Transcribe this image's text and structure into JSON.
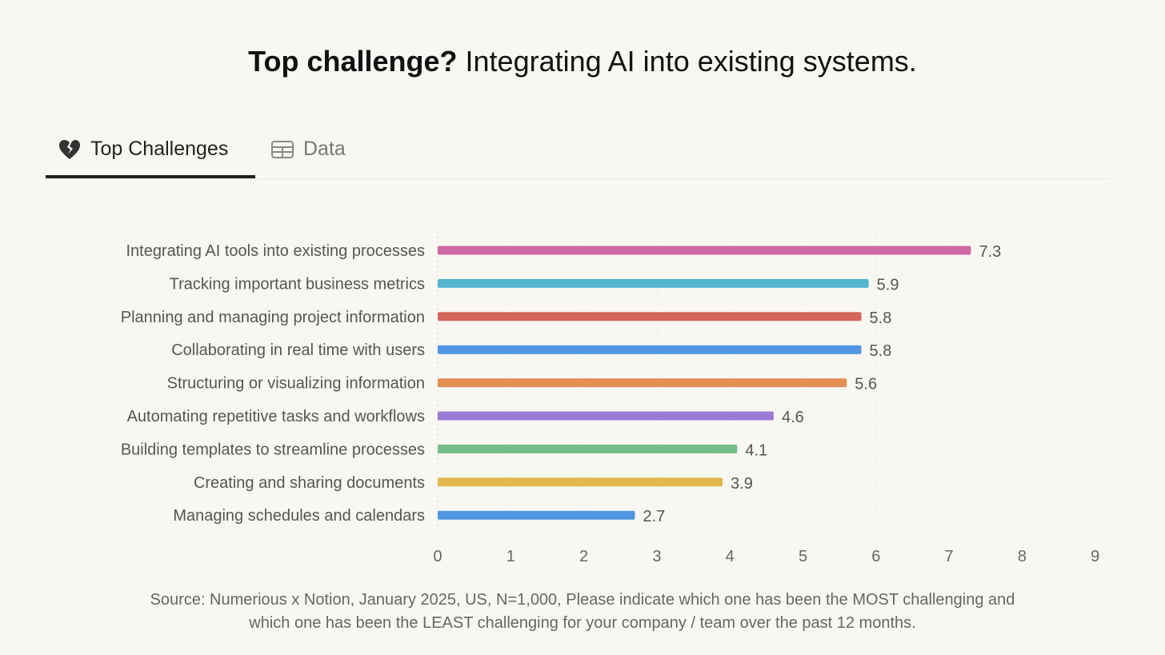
{
  "title": {
    "bold": "Top challenge?",
    "rest": " Integrating AI into existing systems."
  },
  "tabs": [
    {
      "label": "Top Challenges",
      "icon": "broken-heart-icon"
    },
    {
      "label": "Data",
      "icon": "table-icon"
    }
  ],
  "chart_data": {
    "type": "bar",
    "orientation": "horizontal",
    "categories": [
      "Integrating AI tools into existing processes",
      "Tracking important business metrics",
      "Planning and managing project information",
      "Collaborating in real time with users",
      "Structuring or visualizing information",
      "Automating repetitive tasks and workflows",
      "Building templates to streamline processes",
      "Creating and sharing documents",
      "Managing schedules and calendars"
    ],
    "values": [
      7.3,
      5.9,
      5.8,
      5.8,
      5.6,
      4.6,
      4.1,
      3.9,
      2.7
    ],
    "colors": [
      "#d06aa6",
      "#52b4d0",
      "#d4665e",
      "#5196e0",
      "#e38f52",
      "#9b7bd6",
      "#74bc8a",
      "#e0b84c",
      "#5196e0"
    ],
    "xlim": [
      0,
      9
    ],
    "xticks": [
      "0",
      "1",
      "2",
      "3",
      "4",
      "5",
      "6",
      "7",
      "8",
      "9"
    ],
    "grid": true
  },
  "source": {
    "line1": "Source: Numerious x Notion, January 2025, US, N=1,000, Please indicate which one has been the MOST challenging and",
    "line2": "which one has been the LEAST challenging for your company /  team over the past 12 months."
  }
}
